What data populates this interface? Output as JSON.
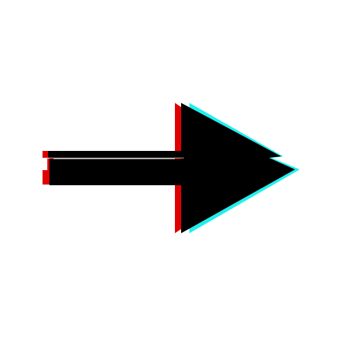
{
  "graphic": {
    "icon": "right-arrow-glitch-icon",
    "colors": {
      "background": "#ffffff",
      "fill": "#000000",
      "red_offset": "#e00000",
      "cyan_offset": "#22eeee",
      "scanline": "#7a6a6a"
    }
  }
}
